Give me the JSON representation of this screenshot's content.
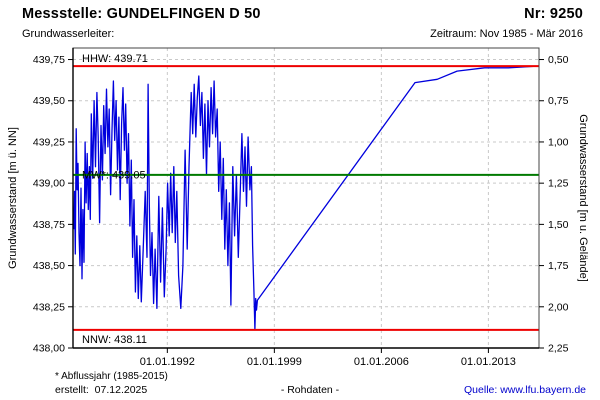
{
  "header": {
    "title": "Messstelle: GUNDELFINGEN D 50",
    "station_number": "Nr: 9250",
    "aquifer_label": "Grundwasserleiter:",
    "period": "Zeitraum: Nov 1985 - Mär 2016"
  },
  "footer": {
    "note": "* Abflussjahr (1985-2015)",
    "created": "erstellt:  07.12.2025",
    "data_type": "- Rohdaten -",
    "source": "Quelle: www.lfu.bayern.de"
  },
  "colors": {
    "series": "#0000dd",
    "extreme_line": "#ee0000",
    "mean_line": "#007a00",
    "grid": "#c9c9c9",
    "frame": "#444444",
    "axis": "#000000",
    "link": "#0000cc"
  },
  "chart_data": {
    "type": "line",
    "x_range": [
      1985.83,
      2016.31
    ],
    "y_range": [
      438.0,
      439.82
    ],
    "x_ticks": [
      {
        "value": 1992.0,
        "label": "01.01.1992"
      },
      {
        "value": 1999.0,
        "label": "01.01.1999"
      },
      {
        "value": 2006.0,
        "label": "01.01.2006"
      },
      {
        "value": 2013.0,
        "label": "01.01.2013"
      }
    ],
    "y_ticks_left": [
      {
        "value": 439.75,
        "label": "439,75"
      },
      {
        "value": 439.5,
        "label": "439,50"
      },
      {
        "value": 439.25,
        "label": "439,25"
      },
      {
        "value": 439.0,
        "label": "439,00"
      },
      {
        "value": 438.75,
        "label": "438,75"
      },
      {
        "value": 438.5,
        "label": "438,50"
      },
      {
        "value": 438.25,
        "label": "438,25"
      },
      {
        "value": 438.0,
        "label": "438,00"
      }
    ],
    "y_ticks_right": [
      {
        "value": 439.75,
        "label": "0,50"
      },
      {
        "value": 439.5,
        "label": "0,75"
      },
      {
        "value": 439.25,
        "label": "1,00"
      },
      {
        "value": 439.0,
        "label": "1,25"
      },
      {
        "value": 438.75,
        "label": "1,50"
      },
      {
        "value": 438.5,
        "label": "1,75"
      },
      {
        "value": 438.25,
        "label": "2,00"
      },
      {
        "value": 438.0,
        "label": "2,25"
      }
    ],
    "ylabel_left": "Grundwasserstand [m ü. NN]",
    "ylabel_right": "Grundwasserstand [m u. Gelände]",
    "xlabel": "",
    "grid": true,
    "reference_lines": [
      {
        "name": "HHW",
        "label": "HHW: 439.71",
        "value": 439.71,
        "color": "#ee0000",
        "label_pos": "above"
      },
      {
        "name": "MW",
        "label": "MW*: 439.05",
        "value": 439.05,
        "color": "#007a00",
        "label_pos": "on"
      },
      {
        "name": "NNW",
        "label": "NNW: 438.11",
        "value": 438.11,
        "color": "#ee0000",
        "label_pos": "below"
      }
    ],
    "series": [
      {
        "name": "Grundwasserstand Rohdaten",
        "color": "#0000dd",
        "points": [
          [
            1985.88,
            438.72
          ],
          [
            1985.93,
            438.95
          ],
          [
            1985.98,
            438.57
          ],
          [
            1986.04,
            439.33
          ],
          [
            1986.1,
            438.96
          ],
          [
            1986.16,
            439.12
          ],
          [
            1986.22,
            438.7
          ],
          [
            1986.29,
            438.5
          ],
          [
            1986.35,
            438.97
          ],
          [
            1986.42,
            438.42
          ],
          [
            1986.48,
            438.84
          ],
          [
            1986.55,
            438.52
          ],
          [
            1986.62,
            439.25
          ],
          [
            1986.69,
            438.88
          ],
          [
            1986.76,
            439.18
          ],
          [
            1986.83,
            438.84
          ],
          [
            1986.9,
            439.1
          ],
          [
            1986.96,
            438.78
          ],
          [
            1987.03,
            439.42
          ],
          [
            1987.12,
            439.03
          ],
          [
            1987.21,
            439.5
          ],
          [
            1987.3,
            439.1
          ],
          [
            1987.39,
            439.55
          ],
          [
            1987.48,
            439.28
          ],
          [
            1987.57,
            438.76
          ],
          [
            1987.66,
            439.35
          ],
          [
            1987.75,
            439.02
          ],
          [
            1987.84,
            439.47
          ],
          [
            1987.93,
            439.18
          ],
          [
            1988.02,
            439.57
          ],
          [
            1988.11,
            439.22
          ],
          [
            1988.2,
            439.45
          ],
          [
            1988.29,
            438.93
          ],
          [
            1988.38,
            439.32
          ],
          [
            1988.47,
            439.62
          ],
          [
            1988.56,
            439.26
          ],
          [
            1988.65,
            439.5
          ],
          [
            1988.74,
            439.08
          ],
          [
            1988.83,
            439.4
          ],
          [
            1988.92,
            438.9
          ],
          [
            1989.01,
            439.36
          ],
          [
            1989.1,
            439.58
          ],
          [
            1989.19,
            439.2
          ],
          [
            1989.28,
            439.48
          ],
          [
            1989.37,
            439.0
          ],
          [
            1989.46,
            439.3
          ],
          [
            1989.55,
            438.74
          ],
          [
            1989.64,
            439.14
          ],
          [
            1989.73,
            438.55
          ],
          [
            1989.82,
            438.9
          ],
          [
            1989.91,
            438.34
          ],
          [
            1990.0,
            438.68
          ],
          [
            1990.1,
            438.3
          ],
          [
            1990.2,
            438.62
          ],
          [
            1990.3,
            438.28
          ],
          [
            1990.42,
            438.6
          ],
          [
            1990.55,
            438.95
          ],
          [
            1990.67,
            438.55
          ],
          [
            1990.74,
            439.6
          ],
          [
            1990.82,
            438.88
          ],
          [
            1990.9,
            438.44
          ],
          [
            1991.0,
            438.7
          ],
          [
            1991.1,
            438.27
          ],
          [
            1991.2,
            438.6
          ],
          [
            1991.32,
            438.24
          ],
          [
            1991.44,
            438.92
          ],
          [
            1991.56,
            438.4
          ],
          [
            1991.68,
            438.85
          ],
          [
            1991.8,
            438.31
          ],
          [
            1991.92,
            438.6
          ],
          [
            1992.02,
            439.0
          ],
          [
            1992.12,
            438.68
          ],
          [
            1992.22,
            439.06
          ],
          [
            1992.32,
            438.7
          ],
          [
            1992.42,
            439.1
          ],
          [
            1992.52,
            438.64
          ],
          [
            1992.62,
            438.95
          ],
          [
            1992.74,
            438.44
          ],
          [
            1992.88,
            438.24
          ],
          [
            1993.02,
            438.5
          ],
          [
            1993.16,
            439.2
          ],
          [
            1993.3,
            438.6
          ],
          [
            1993.42,
            439.1
          ],
          [
            1993.56,
            439.55
          ],
          [
            1993.66,
            439.3
          ],
          [
            1993.76,
            439.6
          ],
          [
            1993.86,
            439.28
          ],
          [
            1993.96,
            439.52
          ],
          [
            1994.06,
            439.65
          ],
          [
            1994.16,
            439.35
          ],
          [
            1994.26,
            439.55
          ],
          [
            1994.36,
            439.15
          ],
          [
            1994.46,
            439.48
          ],
          [
            1994.56,
            439.05
          ],
          [
            1994.66,
            439.5
          ],
          [
            1994.76,
            439.22
          ],
          [
            1994.86,
            439.58
          ],
          [
            1994.96,
            439.3
          ],
          [
            1995.06,
            439.62
          ],
          [
            1995.16,
            439.28
          ],
          [
            1995.26,
            439.45
          ],
          [
            1995.36,
            438.95
          ],
          [
            1995.46,
            439.25
          ],
          [
            1995.56,
            438.78
          ],
          [
            1995.66,
            439.15
          ],
          [
            1995.76,
            438.6
          ],
          [
            1995.86,
            438.96
          ],
          [
            1995.96,
            438.5
          ],
          [
            1996.06,
            438.88
          ],
          [
            1996.16,
            438.26
          ],
          [
            1996.28,
            439.1
          ],
          [
            1996.4,
            438.68
          ],
          [
            1996.52,
            439.05
          ],
          [
            1996.64,
            438.55
          ],
          [
            1996.76,
            438.92
          ],
          [
            1996.88,
            439.3
          ],
          [
            1996.98,
            438.95
          ],
          [
            1997.08,
            439.22
          ],
          [
            1997.18,
            438.86
          ],
          [
            1997.28,
            439.28
          ],
          [
            1997.4,
            438.96
          ],
          [
            1997.5,
            439.1
          ],
          [
            1997.58,
            438.62
          ],
          [
            1997.66,
            438.35
          ],
          [
            1997.73,
            438.11
          ],
          [
            1997.78,
            438.3
          ],
          [
            1997.83,
            438.23
          ],
          [
            1997.89,
            438.29
          ],
          [
            2008.2,
            439.61
          ],
          [
            2009.65,
            439.63
          ],
          [
            2010.95,
            439.68
          ],
          [
            2012.75,
            439.7
          ],
          [
            2014.3,
            439.7
          ],
          [
            2016.22,
            439.71
          ]
        ]
      }
    ]
  }
}
